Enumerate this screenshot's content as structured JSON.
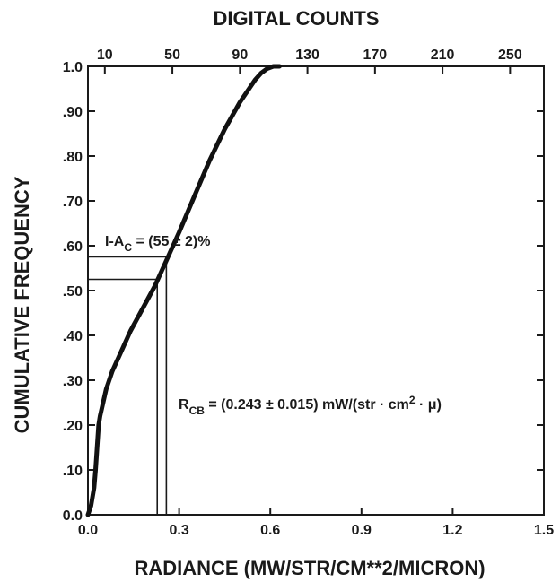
{
  "chart_data": {
    "type": "line",
    "title": "",
    "xlabel": "RADIANCE (MW/STR/CM**2/MICRON)",
    "ylabel": "CUMULATIVE FREQUENCY",
    "x2label": "DIGITAL COUNTS",
    "xlim": [
      0.0,
      1.5
    ],
    "ylim": [
      0.0,
      1.0
    ],
    "x2lim": [
      0,
      270
    ],
    "x_ticks": [
      "0.0",
      "0.3",
      "0.6",
      "0.9",
      "1.2",
      "1.5"
    ],
    "x_tick_values": [
      0.0,
      0.3,
      0.6,
      0.9,
      1.2,
      1.5
    ],
    "y_ticks": [
      "0.0",
      ".10",
      ".20",
      ".30",
      ".40",
      ".50",
      ".60",
      ".70",
      ".80",
      ".90",
      "1.0"
    ],
    "y_tick_values": [
      0.0,
      0.1,
      0.2,
      0.3,
      0.4,
      0.5,
      0.6,
      0.7,
      0.8,
      0.9,
      1.0
    ],
    "x2_ticks": [
      "10",
      "50",
      "90",
      "130",
      "170",
      "210",
      "250"
    ],
    "x2_tick_values": [
      10,
      50,
      90,
      130,
      170,
      210,
      250
    ],
    "series": [
      {
        "x": [
          0.0,
          0.01,
          0.02,
          0.025,
          0.03,
          0.035,
          0.04,
          0.05,
          0.06,
          0.08,
          0.1,
          0.14,
          0.18,
          0.22,
          0.26,
          0.3,
          0.35,
          0.4,
          0.45,
          0.5,
          0.53,
          0.55,
          0.57,
          0.59,
          0.61,
          0.63
        ],
        "y": [
          0.0,
          0.02,
          0.06,
          0.1,
          0.15,
          0.2,
          0.22,
          0.25,
          0.28,
          0.32,
          0.35,
          0.41,
          0.46,
          0.51,
          0.57,
          0.63,
          0.71,
          0.79,
          0.86,
          0.92,
          0.95,
          0.97,
          0.985,
          0.995,
          1.0,
          1.0
        ]
      }
    ],
    "reference_lines": {
      "h_levels": [
        0.525,
        0.575
      ],
      "v_levels": [
        0.228,
        0.258
      ]
    },
    "annotations": {
      "ac": {
        "prefix": "I-A",
        "sub": "C",
        "suffix": " = (55 ± 2)%"
      },
      "rcb": {
        "prefix": "R",
        "sub": "CB",
        "middle": " = (0.243 ± 0.015) mW/(str · cm",
        "sup": "2",
        "suffix": " · μ)"
      }
    },
    "grid": false,
    "legend": "none"
  }
}
